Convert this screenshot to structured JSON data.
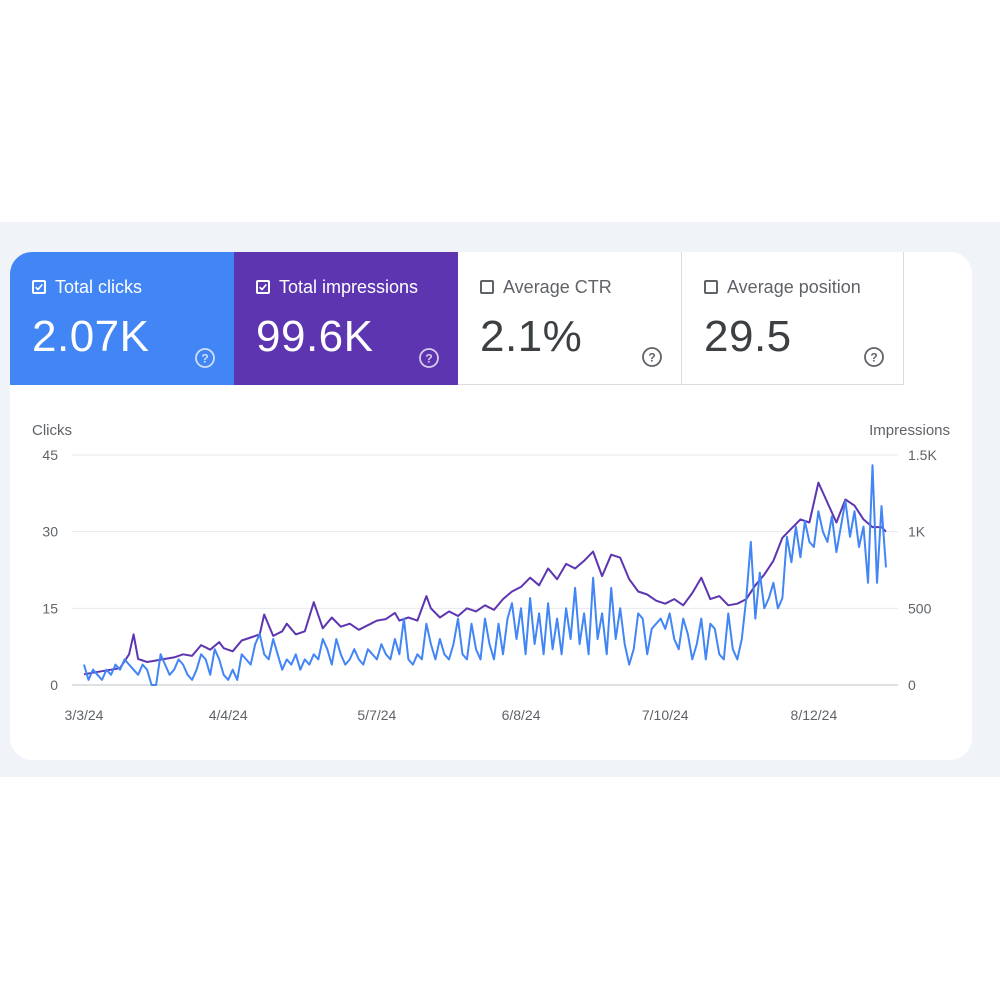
{
  "metrics": [
    {
      "key": "clicks",
      "label": "Total clicks",
      "value": "2.07K",
      "checked": true,
      "color": "#4285f4",
      "icon": "help-circle-icon"
    },
    {
      "key": "impressions",
      "label": "Total impressions",
      "value": "99.6K",
      "checked": true,
      "color": "#5e35b1",
      "icon": "help-circle-icon"
    },
    {
      "key": "ctr",
      "label": "Average CTR",
      "value": "2.1%",
      "checked": false,
      "icon": "help-circle-icon"
    },
    {
      "key": "position",
      "label": "Average position",
      "value": "29.5",
      "checked": false,
      "icon": "help-circle-icon"
    }
  ],
  "chart_data": {
    "type": "line",
    "y_left_label": "Clicks",
    "y_right_label": "Impressions",
    "y_left_ticks": [
      "45",
      "30",
      "15",
      "0"
    ],
    "y_right_ticks": [
      "1.5K",
      "1K",
      "500",
      "0"
    ],
    "ylim_left": [
      0,
      45
    ],
    "ylim_right": [
      0,
      1500
    ],
    "x_ticks": [
      {
        "label": "3/3/24",
        "date": "2024-03-03"
      },
      {
        "label": "4/4/24",
        "date": "2024-04-04"
      },
      {
        "label": "5/7/24",
        "date": "2024-05-07"
      },
      {
        "label": "6/8/24",
        "date": "2024-06-08"
      },
      {
        "label": "7/10/24",
        "date": "2024-07-10"
      },
      {
        "label": "8/12/24",
        "date": "2024-08-12"
      }
    ],
    "x_range": [
      "2024-03-03",
      "2024-08-28"
    ],
    "grid": true,
    "series": [
      {
        "name": "Clicks",
        "axis": "left",
        "color": "#4285f4",
        "points": [
          [
            "2024-03-03",
            4
          ],
          [
            "2024-03-04",
            1
          ],
          [
            "2024-03-05",
            3
          ],
          [
            "2024-03-06",
            2
          ],
          [
            "2024-03-07",
            1
          ],
          [
            "2024-03-08",
            3
          ],
          [
            "2024-03-09",
            2
          ],
          [
            "2024-03-10",
            4
          ],
          [
            "2024-03-11",
            3
          ],
          [
            "2024-03-12",
            5
          ],
          [
            "2024-03-13",
            4
          ],
          [
            "2024-03-14",
            3
          ],
          [
            "2024-03-15",
            2
          ],
          [
            "2024-03-16",
            4
          ],
          [
            "2024-03-17",
            3
          ],
          [
            "2024-03-18",
            0
          ],
          [
            "2024-03-19",
            0
          ],
          [
            "2024-03-20",
            6
          ],
          [
            "2024-03-21",
            4
          ],
          [
            "2024-03-22",
            2
          ],
          [
            "2024-03-23",
            3
          ],
          [
            "2024-03-24",
            5
          ],
          [
            "2024-03-25",
            4
          ],
          [
            "2024-03-26",
            2
          ],
          [
            "2024-03-27",
            1
          ],
          [
            "2024-03-28",
            3
          ],
          [
            "2024-03-29",
            6
          ],
          [
            "2024-03-30",
            5
          ],
          [
            "2024-03-31",
            2
          ],
          [
            "2024-04-01",
            7
          ],
          [
            "2024-04-02",
            5
          ],
          [
            "2024-04-03",
            2
          ],
          [
            "2024-04-04",
            1
          ],
          [
            "2024-04-05",
            3
          ],
          [
            "2024-04-06",
            1
          ],
          [
            "2024-04-07",
            6
          ],
          [
            "2024-04-08",
            5
          ],
          [
            "2024-04-09",
            4
          ],
          [
            "2024-04-10",
            8
          ],
          [
            "2024-04-11",
            10
          ],
          [
            "2024-04-12",
            6
          ],
          [
            "2024-04-13",
            5
          ],
          [
            "2024-04-14",
            9
          ],
          [
            "2024-04-15",
            6
          ],
          [
            "2024-04-16",
            3
          ],
          [
            "2024-04-17",
            5
          ],
          [
            "2024-04-18",
            4
          ],
          [
            "2024-04-19",
            6
          ],
          [
            "2024-04-20",
            3
          ],
          [
            "2024-04-21",
            5
          ],
          [
            "2024-04-22",
            4
          ],
          [
            "2024-04-23",
            6
          ],
          [
            "2024-04-24",
            5
          ],
          [
            "2024-04-25",
            9
          ],
          [
            "2024-04-26",
            7
          ],
          [
            "2024-04-27",
            4
          ],
          [
            "2024-04-28",
            9
          ],
          [
            "2024-04-29",
            6
          ],
          [
            "2024-04-30",
            4
          ],
          [
            "2024-05-01",
            5
          ],
          [
            "2024-05-02",
            7
          ],
          [
            "2024-05-03",
            5
          ],
          [
            "2024-05-04",
            4
          ],
          [
            "2024-05-05",
            7
          ],
          [
            "2024-05-06",
            6
          ],
          [
            "2024-05-07",
            5
          ],
          [
            "2024-05-08",
            8
          ],
          [
            "2024-05-09",
            6
          ],
          [
            "2024-05-10",
            5
          ],
          [
            "2024-05-11",
            9
          ],
          [
            "2024-05-12",
            6
          ],
          [
            "2024-05-13",
            13
          ],
          [
            "2024-05-14",
            5
          ],
          [
            "2024-05-15",
            4
          ],
          [
            "2024-05-16",
            6
          ],
          [
            "2024-05-17",
            5
          ],
          [
            "2024-05-18",
            12
          ],
          [
            "2024-05-19",
            8
          ],
          [
            "2024-05-20",
            5
          ],
          [
            "2024-05-21",
            9
          ],
          [
            "2024-05-22",
            6
          ],
          [
            "2024-05-23",
            5
          ],
          [
            "2024-05-24",
            8
          ],
          [
            "2024-05-25",
            13
          ],
          [
            "2024-05-26",
            6
          ],
          [
            "2024-05-27",
            5
          ],
          [
            "2024-05-28",
            12
          ],
          [
            "2024-05-29",
            7
          ],
          [
            "2024-05-30",
            5
          ],
          [
            "2024-05-31",
            13
          ],
          [
            "2024-06-01",
            8
          ],
          [
            "2024-06-02",
            5
          ],
          [
            "2024-06-03",
            12
          ],
          [
            "2024-06-04",
            6
          ],
          [
            "2024-06-05",
            13
          ],
          [
            "2024-06-06",
            16
          ],
          [
            "2024-06-07",
            9
          ],
          [
            "2024-06-08",
            15
          ],
          [
            "2024-06-09",
            6
          ],
          [
            "2024-06-10",
            17
          ],
          [
            "2024-06-11",
            8
          ],
          [
            "2024-06-12",
            14
          ],
          [
            "2024-06-13",
            6
          ],
          [
            "2024-06-14",
            16
          ],
          [
            "2024-06-15",
            7
          ],
          [
            "2024-06-16",
            13
          ],
          [
            "2024-06-17",
            6
          ],
          [
            "2024-06-18",
            15
          ],
          [
            "2024-06-19",
            9
          ],
          [
            "2024-06-20",
            19
          ],
          [
            "2024-06-21",
            8
          ],
          [
            "2024-06-22",
            14
          ],
          [
            "2024-06-23",
            6
          ],
          [
            "2024-06-24",
            21
          ],
          [
            "2024-06-25",
            9
          ],
          [
            "2024-06-26",
            14
          ],
          [
            "2024-06-27",
            6
          ],
          [
            "2024-06-28",
            19
          ],
          [
            "2024-06-29",
            9
          ],
          [
            "2024-06-30",
            15
          ],
          [
            "2024-07-01",
            8
          ],
          [
            "2024-07-02",
            4
          ],
          [
            "2024-07-03",
            7
          ],
          [
            "2024-07-04",
            14
          ],
          [
            "2024-07-05",
            13
          ],
          [
            "2024-07-06",
            6
          ],
          [
            "2024-07-07",
            11
          ],
          [
            "2024-07-08",
            12
          ],
          [
            "2024-07-09",
            13
          ],
          [
            "2024-07-10",
            11
          ],
          [
            "2024-07-11",
            14
          ],
          [
            "2024-07-12",
            9
          ],
          [
            "2024-07-13",
            7
          ],
          [
            "2024-07-14",
            13
          ],
          [
            "2024-07-15",
            10
          ],
          [
            "2024-07-16",
            5
          ],
          [
            "2024-07-17",
            8
          ],
          [
            "2024-07-18",
            13
          ],
          [
            "2024-07-19",
            5
          ],
          [
            "2024-07-20",
            12
          ],
          [
            "2024-07-21",
            11
          ],
          [
            "2024-07-22",
            6
          ],
          [
            "2024-07-23",
            5
          ],
          [
            "2024-07-24",
            14
          ],
          [
            "2024-07-25",
            7
          ],
          [
            "2024-07-26",
            5
          ],
          [
            "2024-07-27",
            9
          ],
          [
            "2024-07-28",
            17
          ],
          [
            "2024-07-29",
            28
          ],
          [
            "2024-07-30",
            13
          ],
          [
            "2024-07-31",
            22
          ],
          [
            "2024-08-01",
            15
          ],
          [
            "2024-08-02",
            17
          ],
          [
            "2024-08-03",
            20
          ],
          [
            "2024-08-04",
            15
          ],
          [
            "2024-08-05",
            17
          ],
          [
            "2024-08-06",
            29
          ],
          [
            "2024-08-07",
            24
          ],
          [
            "2024-08-08",
            31
          ],
          [
            "2024-08-09",
            25
          ],
          [
            "2024-08-10",
            32
          ],
          [
            "2024-08-11",
            28
          ],
          [
            "2024-08-12",
            27
          ],
          [
            "2024-08-13",
            34
          ],
          [
            "2024-08-14",
            30
          ],
          [
            "2024-08-15",
            28
          ],
          [
            "2024-08-16",
            33
          ],
          [
            "2024-08-17",
            26
          ],
          [
            "2024-08-18",
            31
          ],
          [
            "2024-08-19",
            36
          ],
          [
            "2024-08-20",
            29
          ],
          [
            "2024-08-21",
            34
          ],
          [
            "2024-08-22",
            27
          ],
          [
            "2024-08-23",
            31
          ],
          [
            "2024-08-24",
            20
          ],
          [
            "2024-08-25",
            43
          ],
          [
            "2024-08-26",
            20
          ],
          [
            "2024-08-27",
            35
          ],
          [
            "2024-08-28",
            23
          ]
        ]
      },
      {
        "name": "Impressions",
        "axis": "right",
        "color": "#5e35b1",
        "points": [
          [
            "2024-03-03",
            70
          ],
          [
            "2024-03-05",
            80
          ],
          [
            "2024-03-07",
            90
          ],
          [
            "2024-03-09",
            100
          ],
          [
            "2024-03-11",
            110
          ],
          [
            "2024-03-13",
            200
          ],
          [
            "2024-03-14",
            330
          ],
          [
            "2024-03-15",
            170
          ],
          [
            "2024-03-17",
            150
          ],
          [
            "2024-03-19",
            160
          ],
          [
            "2024-03-21",
            170
          ],
          [
            "2024-03-23",
            180
          ],
          [
            "2024-03-25",
            200
          ],
          [
            "2024-03-27",
            190
          ],
          [
            "2024-03-29",
            260
          ],
          [
            "2024-03-31",
            230
          ],
          [
            "2024-04-02",
            280
          ],
          [
            "2024-04-03",
            240
          ],
          [
            "2024-04-05",
            220
          ],
          [
            "2024-04-07",
            290
          ],
          [
            "2024-04-09",
            310
          ],
          [
            "2024-04-11",
            330
          ],
          [
            "2024-04-12",
            460
          ],
          [
            "2024-04-14",
            320
          ],
          [
            "2024-04-16",
            350
          ],
          [
            "2024-04-17",
            400
          ],
          [
            "2024-04-19",
            330
          ],
          [
            "2024-04-21",
            350
          ],
          [
            "2024-04-23",
            540
          ],
          [
            "2024-04-25",
            370
          ],
          [
            "2024-04-27",
            440
          ],
          [
            "2024-04-29",
            380
          ],
          [
            "2024-05-01",
            400
          ],
          [
            "2024-05-03",
            360
          ],
          [
            "2024-05-05",
            390
          ],
          [
            "2024-05-07",
            420
          ],
          [
            "2024-05-09",
            430
          ],
          [
            "2024-05-11",
            470
          ],
          [
            "2024-05-12",
            420
          ],
          [
            "2024-05-14",
            440
          ],
          [
            "2024-05-16",
            420
          ],
          [
            "2024-05-18",
            580
          ],
          [
            "2024-05-19",
            500
          ],
          [
            "2024-05-21",
            440
          ],
          [
            "2024-05-23",
            480
          ],
          [
            "2024-05-25",
            450
          ],
          [
            "2024-05-27",
            500
          ],
          [
            "2024-05-29",
            480
          ],
          [
            "2024-05-31",
            520
          ],
          [
            "2024-06-02",
            490
          ],
          [
            "2024-06-04",
            560
          ],
          [
            "2024-06-06",
            610
          ],
          [
            "2024-06-08",
            640
          ],
          [
            "2024-06-10",
            700
          ],
          [
            "2024-06-12",
            650
          ],
          [
            "2024-06-14",
            760
          ],
          [
            "2024-06-16",
            690
          ],
          [
            "2024-06-18",
            790
          ],
          [
            "2024-06-20",
            760
          ],
          [
            "2024-06-22",
            810
          ],
          [
            "2024-06-24",
            870
          ],
          [
            "2024-06-26",
            710
          ],
          [
            "2024-06-28",
            850
          ],
          [
            "2024-06-30",
            830
          ],
          [
            "2024-07-02",
            690
          ],
          [
            "2024-07-04",
            610
          ],
          [
            "2024-07-06",
            590
          ],
          [
            "2024-07-08",
            550
          ],
          [
            "2024-07-10",
            530
          ],
          [
            "2024-07-12",
            560
          ],
          [
            "2024-07-14",
            520
          ],
          [
            "2024-07-16",
            600
          ],
          [
            "2024-07-18",
            700
          ],
          [
            "2024-07-20",
            560
          ],
          [
            "2024-07-22",
            580
          ],
          [
            "2024-07-24",
            520
          ],
          [
            "2024-07-26",
            530
          ],
          [
            "2024-07-28",
            560
          ],
          [
            "2024-07-30",
            650
          ],
          [
            "2024-08-01",
            720
          ],
          [
            "2024-08-03",
            810
          ],
          [
            "2024-08-05",
            960
          ],
          [
            "2024-08-07",
            1020
          ],
          [
            "2024-08-09",
            1080
          ],
          [
            "2024-08-11",
            1060
          ],
          [
            "2024-08-13",
            1320
          ],
          [
            "2024-08-15",
            1190
          ],
          [
            "2024-08-17",
            1060
          ],
          [
            "2024-08-19",
            1210
          ],
          [
            "2024-08-21",
            1170
          ],
          [
            "2024-08-23",
            1080
          ],
          [
            "2024-08-25",
            1030
          ],
          [
            "2024-08-27",
            1030
          ],
          [
            "2024-08-28",
            1000
          ]
        ]
      }
    ]
  }
}
